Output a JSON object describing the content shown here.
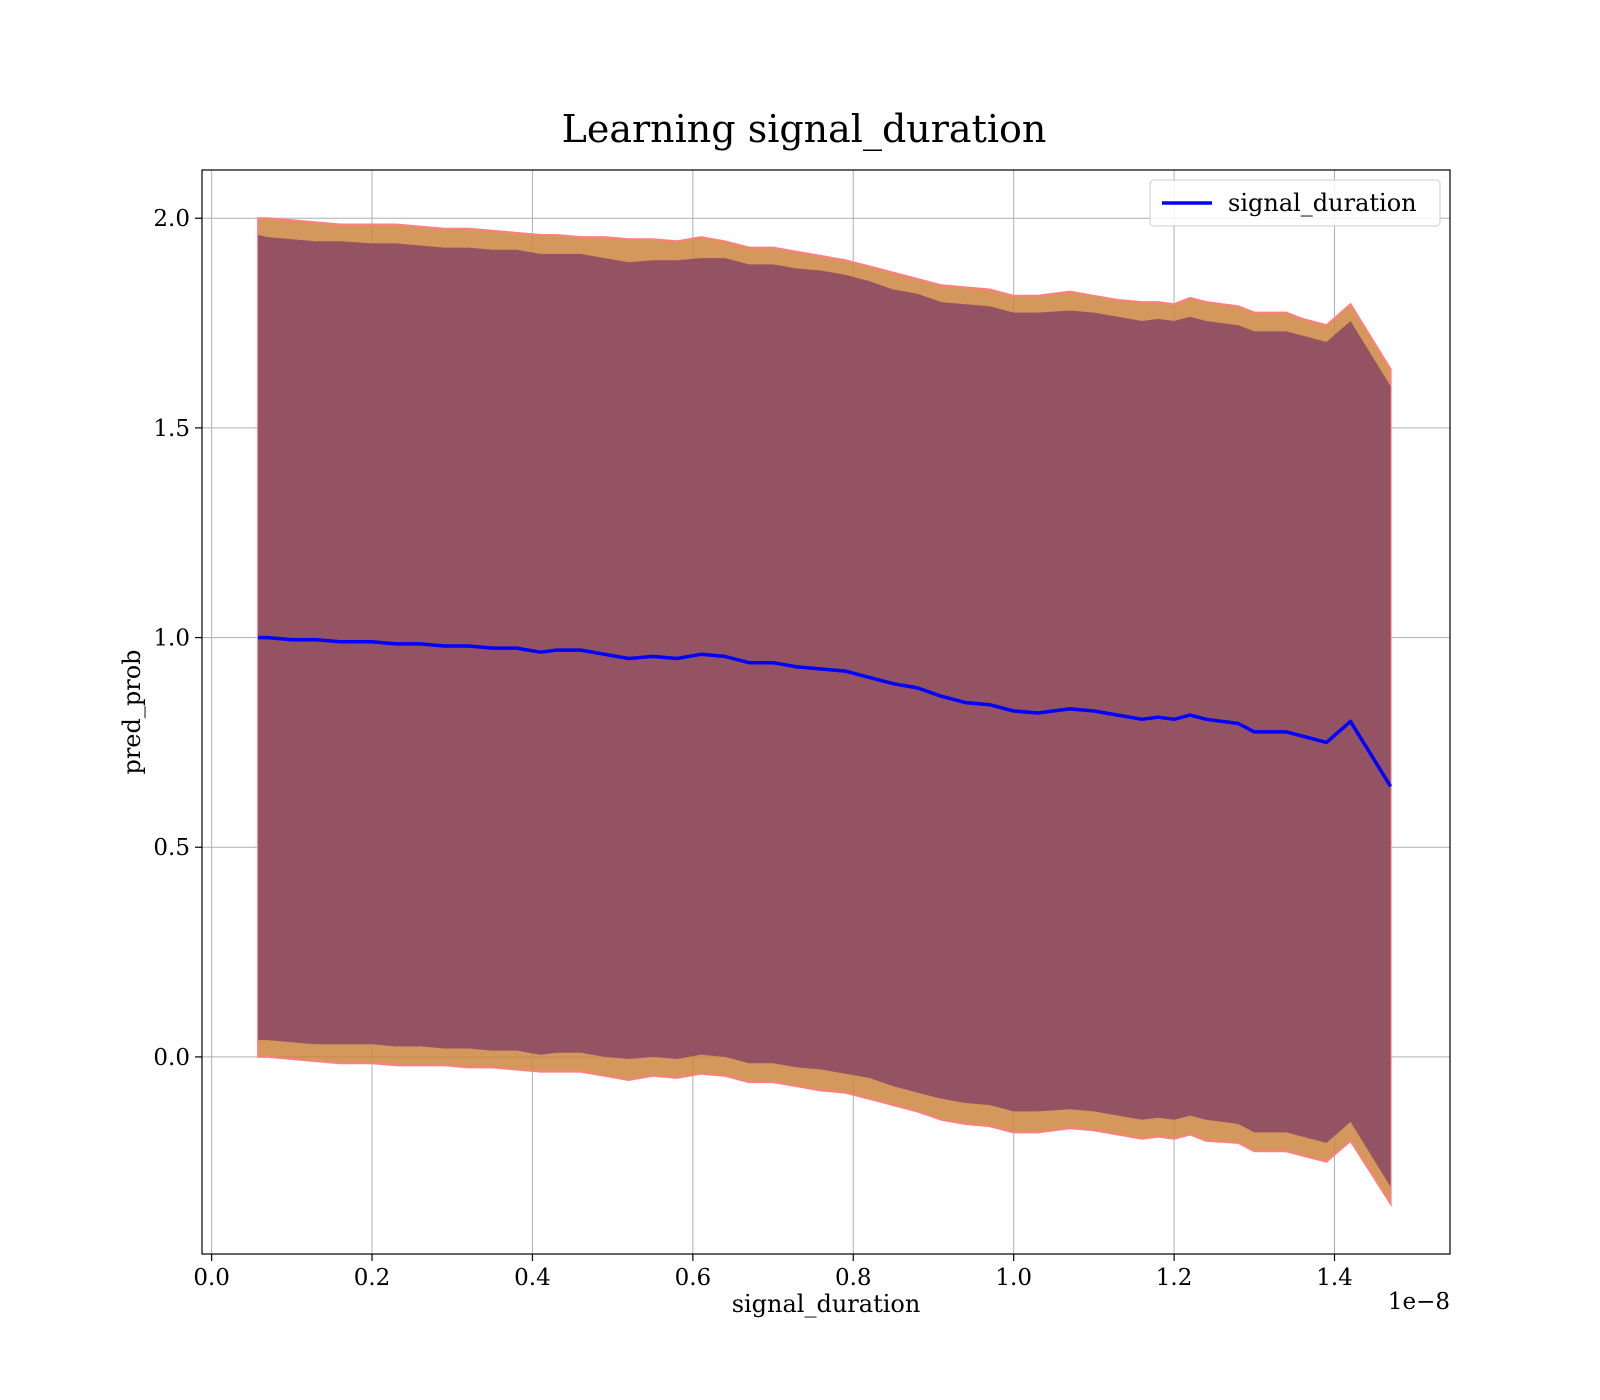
{
  "chart_data": {
    "type": "line",
    "title": "Learning signal_duration",
    "xlabel": "signal_duration",
    "ylabel": "pred_prob",
    "x_offset_label": "1e−8",
    "xlim": [
      -1.2e-10,
      1.544e-08
    ],
    "ylim": [
      -0.47,
      2.115
    ],
    "x_ticks": [
      0.0,
      2e-09,
      4e-09,
      6e-09,
      8e-09,
      1e-08,
      1.2e-08,
      1.4e-08
    ],
    "x_tick_labels": [
      "0.0",
      "0.2",
      "0.4",
      "0.6",
      "0.8",
      "1.0",
      "1.2",
      "1.4"
    ],
    "y_ticks": [
      0.0,
      0.5,
      1.0,
      1.5,
      2.0
    ],
    "y_tick_labels": [
      "0.0",
      "0.5",
      "1.0",
      "1.5",
      "2.0"
    ],
    "grid": true,
    "legend_position": "upper-right",
    "series": [
      {
        "name": "signal_duration",
        "color": "#0000ff",
        "x": [
          5.8e-10,
          7e-10,
          1e-09,
          1.3e-09,
          1.6e-09,
          2e-09,
          2.3e-09,
          2.6e-09,
          2.9e-09,
          3.2e-09,
          3.5e-09,
          3.8e-09,
          4.1e-09,
          4.3e-09,
          4.6e-09,
          4.9e-09,
          5.2e-09,
          5.5e-09,
          5.8e-09,
          6.1e-09,
          6.4e-09,
          6.7e-09,
          7e-09,
          7.3e-09,
          7.6e-09,
          7.9e-09,
          8.2e-09,
          8.5e-09,
          8.8e-09,
          9.1e-09,
          9.4e-09,
          9.7e-09,
          1e-08,
          1.03e-08,
          1.07e-08,
          1.1e-08,
          1.13e-08,
          1.16e-08,
          1.18e-08,
          1.2e-08,
          1.22e-08,
          1.24e-08,
          1.28e-08,
          1.3e-08,
          1.34e-08,
          1.36e-08,
          1.39e-08,
          1.42e-08,
          1.47e-08
        ],
        "y": [
          1.0,
          1.0,
          0.995,
          0.995,
          0.99,
          0.99,
          0.985,
          0.985,
          0.98,
          0.98,
          0.975,
          0.975,
          0.965,
          0.97,
          0.97,
          0.96,
          0.95,
          0.955,
          0.95,
          0.96,
          0.955,
          0.94,
          0.94,
          0.93,
          0.925,
          0.92,
          0.905,
          0.89,
          0.88,
          0.86,
          0.845,
          0.84,
          0.825,
          0.82,
          0.83,
          0.825,
          0.815,
          0.805,
          0.81,
          0.805,
          0.815,
          0.805,
          0.795,
          0.775,
          0.775,
          0.765,
          0.75,
          0.8,
          0.645
        ]
      }
    ],
    "bands": [
      {
        "name": "outer band",
        "color": "#cd853f",
        "edge_color": "#ff7f7f",
        "upper": [
          2.0,
          2.0,
          1.995,
          1.99,
          1.985,
          1.985,
          1.985,
          1.98,
          1.975,
          1.975,
          1.97,
          1.965,
          1.96,
          1.96,
          1.955,
          1.955,
          1.95,
          1.95,
          1.945,
          1.955,
          1.945,
          1.93,
          1.93,
          1.92,
          1.91,
          1.9,
          1.885,
          1.87,
          1.855,
          1.84,
          1.835,
          1.83,
          1.815,
          1.815,
          1.825,
          1.815,
          1.805,
          1.8,
          1.8,
          1.795,
          1.81,
          1.8,
          1.79,
          1.775,
          1.775,
          1.76,
          1.745,
          1.795,
          1.64
        ],
        "lower": [
          0.0,
          0.0,
          -0.005,
          -0.01,
          -0.015,
          -0.015,
          -0.02,
          -0.02,
          -0.02,
          -0.025,
          -0.025,
          -0.03,
          -0.035,
          -0.035,
          -0.035,
          -0.045,
          -0.055,
          -0.045,
          -0.05,
          -0.04,
          -0.045,
          -0.06,
          -0.06,
          -0.07,
          -0.08,
          -0.085,
          -0.1,
          -0.115,
          -0.13,
          -0.15,
          -0.16,
          -0.165,
          -0.18,
          -0.18,
          -0.17,
          -0.175,
          -0.185,
          -0.195,
          -0.19,
          -0.195,
          -0.185,
          -0.2,
          -0.205,
          -0.225,
          -0.225,
          -0.235,
          -0.25,
          -0.2,
          -0.35
        ]
      },
      {
        "name": "inner band",
        "color": "#8b4a64",
        "upper": [
          1.96,
          1.955,
          1.95,
          1.945,
          1.945,
          1.94,
          1.94,
          1.935,
          1.93,
          1.93,
          1.925,
          1.925,
          1.915,
          1.915,
          1.915,
          1.905,
          1.895,
          1.9,
          1.9,
          1.905,
          1.905,
          1.89,
          1.89,
          1.88,
          1.875,
          1.865,
          1.85,
          1.83,
          1.82,
          1.8,
          1.795,
          1.79,
          1.775,
          1.775,
          1.78,
          1.775,
          1.765,
          1.755,
          1.76,
          1.755,
          1.765,
          1.755,
          1.745,
          1.73,
          1.73,
          1.72,
          1.705,
          1.755,
          1.6
        ],
        "lower": [
          0.04,
          0.04,
          0.035,
          0.03,
          0.03,
          0.03,
          0.025,
          0.025,
          0.02,
          0.02,
          0.015,
          0.015,
          0.005,
          0.01,
          0.01,
          0.0,
          -0.005,
          0.0,
          -0.005,
          0.005,
          0.0,
          -0.015,
          -0.015,
          -0.025,
          -0.03,
          -0.04,
          -0.05,
          -0.07,
          -0.085,
          -0.1,
          -0.11,
          -0.115,
          -0.13,
          -0.13,
          -0.125,
          -0.13,
          -0.14,
          -0.15,
          -0.145,
          -0.15,
          -0.14,
          -0.15,
          -0.16,
          -0.18,
          -0.18,
          -0.19,
          -0.205,
          -0.155,
          -0.31
        ]
      }
    ]
  }
}
